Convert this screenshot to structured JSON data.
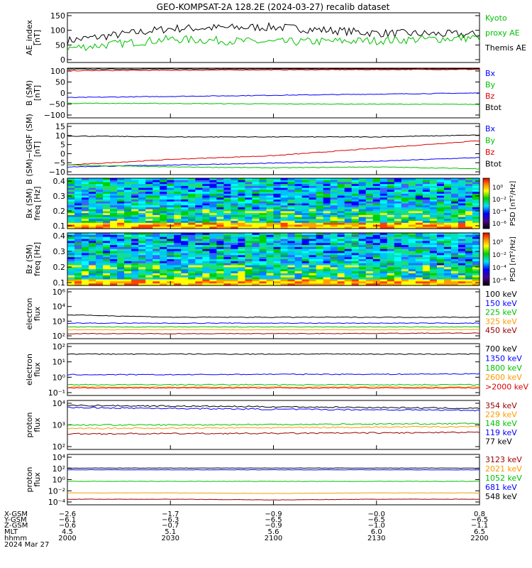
{
  "title": "GEO-KOMPSAT-2A 128.2E (2024-03-27) recalib dataset",
  "colors": {
    "black": "#000000",
    "blue": "#0000ff",
    "green": "#00c000",
    "red": "#dd0000",
    "orange": "#ff9900",
    "darkred": "#990000"
  },
  "panels": [
    {
      "id": "ae",
      "ylabel": [
        "AE_index",
        "[nT]"
      ],
      "yticks": [
        "150",
        "100",
        "50",
        "0"
      ],
      "legend": [
        {
          "text": "Kyoto",
          "color": "#00c000"
        },
        {
          "text": "proxy AE",
          "color": "#00c000"
        },
        {
          "text": "Themis AE",
          "color": "#000000"
        }
      ]
    },
    {
      "id": "bsm",
      "ylabel": [
        "B (SM)",
        "[nT]"
      ],
      "yticks": [
        "100",
        "50",
        "0",
        "−50",
        "−100"
      ],
      "legend": [
        {
          "text": "Bx",
          "color": "#0000ff"
        },
        {
          "text": "By",
          "color": "#00c000"
        },
        {
          "text": "Bz",
          "color": "#dd0000"
        },
        {
          "text": "Btot",
          "color": "#000000"
        }
      ]
    },
    {
      "id": "bigrf",
      "ylabel": [
        "B (SM)−IGRF (SM)",
        "[nT]"
      ],
      "yticks": [
        "15",
        "10",
        "5",
        "0",
        "−5",
        "−10"
      ],
      "legend": [
        {
          "text": "Bx",
          "color": "#0000ff"
        },
        {
          "text": "By",
          "color": "#00c000"
        },
        {
          "text": "Bz",
          "color": "#dd0000"
        },
        {
          "text": "Btot",
          "color": "#000000"
        }
      ]
    },
    {
      "id": "bxspec",
      "ylabel": [
        "Bx (SM)",
        "freq [Hz]"
      ],
      "yticks": [
        "0.4",
        "0.3",
        "0.2",
        "0.1"
      ],
      "cbar_label": "PSD [nT²/Hz]",
      "cbar_ticks": [
        "10⁰",
        "10⁻²",
        "10⁻⁴",
        "10⁻⁶"
      ]
    },
    {
      "id": "bzspec",
      "ylabel": [
        "Bz (SM)",
        "freq [Hz]"
      ],
      "yticks": [
        "0.4",
        "0.3",
        "0.2",
        "0.1"
      ],
      "cbar_label": "PSD [nT²/Hz]",
      "cbar_ticks": [
        "10⁰",
        "10⁻²",
        "10⁻⁴",
        "10⁻⁶"
      ]
    },
    {
      "id": "elec1",
      "ylabel": [
        "electron",
        "flux"
      ],
      "yticks": [
        "10⁶",
        "10⁴",
        "10³",
        "10²"
      ],
      "legend": [
        {
          "text": "100 keV",
          "color": "#000000"
        },
        {
          "text": "150 keV",
          "color": "#0000ff"
        },
        {
          "text": "225 keV",
          "color": "#00c000"
        },
        {
          "text": "325 keV",
          "color": "#ff9900"
        },
        {
          "text": "450 keV",
          "color": "#990000"
        }
      ]
    },
    {
      "id": "elec2",
      "ylabel": [
        "electron",
        "flux"
      ],
      "yticks": [
        "10²",
        "10¹",
        "10⁰",
        "10⁻¹"
      ],
      "legend": [
        {
          "text": "700 keV",
          "color": "#000000"
        },
        {
          "text": "1350 keV",
          "color": "#0000ff"
        },
        {
          "text": "1800 keV",
          "color": "#00c000"
        },
        {
          "text": "2600 keV",
          "color": "#ff9900"
        },
        {
          "text": ">2000 keV",
          "color": "#dd0000"
        }
      ]
    },
    {
      "id": "prot1",
      "ylabel": [
        "proton",
        "flux"
      ],
      "yticks": [
        "10⁴",
        "10³",
        "10²"
      ],
      "legend": [
        {
          "text": "354 keV",
          "color": "#990000"
        },
        {
          "text": "229 keV",
          "color": "#ff9900"
        },
        {
          "text": "148 keV",
          "color": "#00c000"
        },
        {
          "text": "119 keV",
          "color": "#0000ff"
        },
        {
          "text": "77 keV",
          "color": "#000000"
        }
      ]
    },
    {
      "id": "prot2",
      "ylabel": [
        "proton",
        "flux"
      ],
      "yticks": [
        "10⁴",
        "10²",
        "10⁰",
        "10⁻²",
        "10⁻⁴"
      ],
      "legend": [
        {
          "text": "3123 keV",
          "color": "#990000"
        },
        {
          "text": "2021 keV",
          "color": "#ff9900"
        },
        {
          "text": "1052 keV",
          "color": "#00c000"
        },
        {
          "text": "681 keV",
          "color": "#0000ff"
        },
        {
          "text": "548 keV",
          "color": "#000000"
        }
      ]
    }
  ],
  "xaxis": {
    "row_labels": [
      "X-GSM",
      "Y-GSM",
      "Z-GSM",
      "MLT",
      "hhmm",
      "2024 Mar 27"
    ],
    "columns": [
      [
        "−2.6",
        "−6.1",
        "−0.6",
        "4.5",
        "2000"
      ],
      [
        "−1.7",
        "−6.3",
        "−0.7",
        "5.1",
        "2030"
      ],
      [
        "−0.9",
        "−6.5",
        "−0.9",
        "5.6",
        "2100"
      ],
      [
        "−0.0",
        "−6.5",
        "−1.0",
        "6.0",
        "2130"
      ],
      [
        "0.8",
        "−6.5",
        "−1.1",
        "6.5",
        "2200"
      ]
    ]
  },
  "chart_data": {
    "type": "line",
    "title": "GEO-KOMPSAT-2A 128.2E (2024-03-27) recalib dataset",
    "x": [
      "2000",
      "2030",
      "2100",
      "2130",
      "2200"
    ],
    "panels": [
      {
        "ylabel": "AE_index [nT]",
        "ylim": [
          0,
          150
        ],
        "series": [
          {
            "name": "Themis AE",
            "color": "#000000",
            "values": [
              65,
              105,
              110,
              90,
              85
            ]
          },
          {
            "name": "Kyoto proxy AE",
            "color": "#00c000",
            "values": [
              40,
              70,
              60,
              65,
              75
            ]
          }
        ]
      },
      {
        "ylabel": "B (SM) [nT]",
        "ylim": [
          -100,
          100
        ],
        "series": [
          {
            "name": "Btot",
            "color": "#000000",
            "values": [
              105,
              106,
              107,
              107,
              107
            ]
          },
          {
            "name": "Bz",
            "color": "#dd0000",
            "values": [
              98,
              100,
              102,
              103,
              104
            ]
          },
          {
            "name": "Bx",
            "color": "#0000ff",
            "values": [
              -20,
              -15,
              -10,
              -5,
              0
            ]
          },
          {
            "name": "By",
            "color": "#00c000",
            "values": [
              -45,
              -46,
              -48,
              -49,
              -50
            ]
          }
        ]
      },
      {
        "ylabel": "B (SM)−IGRF (SM) [nT]",
        "ylim": [
          -10,
          15
        ],
        "series": [
          {
            "name": "Btot",
            "color": "#000000",
            "values": [
              9.5,
              9,
              9,
              9,
              10
            ]
          },
          {
            "name": "Bz",
            "color": "#dd0000",
            "values": [
              -6,
              -3,
              -1,
              3,
              7
            ]
          },
          {
            "name": "Bx",
            "color": "#0000ff",
            "values": [
              -7,
              -6,
              -5,
              -4,
              -2
            ]
          },
          {
            "name": "By",
            "color": "#00c000",
            "values": [
              -6,
              -7,
              -7.5,
              -7,
              -8
            ]
          }
        ]
      },
      {
        "ylabel": "electron flux",
        "ylim": [
          100,
          1000000
        ],
        "scale": "log",
        "series": [
          {
            "name": "100 keV",
            "color": "#000000",
            "values": [
              8000,
              5000,
              5000,
              5000,
              5000
            ]
          },
          {
            "name": "150 keV",
            "color": "#0000ff",
            "values": [
              1500,
              1500,
              1500,
              1500,
              1500
            ]
          },
          {
            "name": "225 keV",
            "color": "#00c000",
            "values": [
              700,
              700,
              700,
              700,
              700
            ]
          },
          {
            "name": "325 keV",
            "color": "#ff9900",
            "values": [
              400,
              400,
              400,
              400,
              420
            ]
          },
          {
            "name": "450 keV",
            "color": "#990000",
            "values": [
              180,
              180,
              180,
              190,
              200
            ]
          }
        ]
      },
      {
        "ylabel": "electron flux",
        "ylim": [
          0.1,
          100
        ],
        "scale": "log",
        "series": [
          {
            "name": "700 keV",
            "color": "#000000",
            "values": [
              30,
              30,
              30,
              30,
              30
            ]
          },
          {
            "name": "1350 keV",
            "color": "#0000ff",
            "values": [
              1.5,
              1.5,
              1.6,
              1.6,
              1.7
            ]
          },
          {
            "name": "1800 keV",
            "color": "#00c000",
            "values": [
              0.35,
              0.35,
              0.35,
              0.35,
              0.35
            ]
          },
          {
            "name": "2600 keV",
            "color": "#ff9900",
            "values": [
              0.25,
              0.25,
              0.25,
              0.25,
              0.25
            ]
          },
          {
            "name": ">2000 keV",
            "color": "#dd0000",
            "values": [
              0.22,
              0.22,
              0.22,
              0.22,
              0.22
            ]
          }
        ]
      },
      {
        "ylabel": "proton flux",
        "ylim": [
          100,
          10000
        ],
        "scale": "log",
        "series": [
          {
            "name": "77 keV",
            "color": "#000000",
            "values": [
              7500,
              7000,
              6500,
              6000,
              5500
            ]
          },
          {
            "name": "119 keV",
            "color": "#0000ff",
            "values": [
              6000,
              5500,
              5000,
              4800,
              4500
            ]
          },
          {
            "name": "148 keV",
            "color": "#00c000",
            "values": [
              1000,
              1000,
              1050,
              1100,
              1150
            ]
          },
          {
            "name": "229 keV",
            "color": "#ff9900",
            "values": [
              700,
              720,
              750,
              800,
              850
            ]
          },
          {
            "name": "354 keV",
            "color": "#990000",
            "values": [
              400,
              410,
              420,
              440,
              460
            ]
          }
        ]
      },
      {
        "ylabel": "proton flux",
        "ylim": [
          0.0001,
          10000
        ],
        "scale": "log",
        "series": [
          {
            "name": "548 keV",
            "color": "#000000",
            "values": [
              100,
              100,
              100,
              100,
              100
            ]
          },
          {
            "name": "681 keV",
            "color": "#0000ff",
            "values": [
              50,
              50,
              50,
              50,
              50
            ]
          },
          {
            "name": "1052 keV",
            "color": "#00c000",
            "values": [
              0.5,
              0.5,
              0.5,
              0.5,
              0.5
            ]
          },
          {
            "name": "2021 keV",
            "color": "#ff9900",
            "values": [
              0.005,
              0.005,
              0.004,
              0.005,
              0.005
            ]
          },
          {
            "name": "3123 keV",
            "color": "#990000",
            "values": [
              0.0004,
              0.0004,
              0.0003,
              0.0004,
              0.0004
            ]
          }
        ]
      }
    ]
  }
}
